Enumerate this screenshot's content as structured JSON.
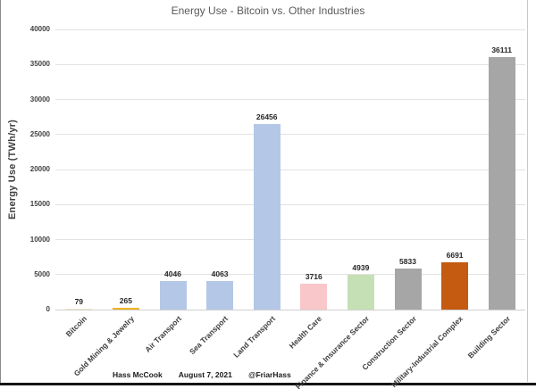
{
  "title": "Energy Use - Bitcoin vs. Other Industries",
  "footer": {
    "author": "Hass McCook",
    "date": "August 7, 2021",
    "handle": "@FriarHass"
  },
  "chart_data": {
    "type": "bar",
    "title": "Energy Use - Bitcoin vs. Other Industries",
    "xlabel": "",
    "ylabel": "Energy Use (TWh/yr)",
    "ylim": [
      0,
      40000
    ],
    "ytick_step": 5000,
    "grid": true,
    "legend": false,
    "categories": [
      "Bitcoin",
      "Gold Mining & Jewelry",
      "Air Transport",
      "Sea Transport",
      "Land Transport",
      "Health Care",
      "Finance & Insurance Sector",
      "Construction Sector",
      "Military-Industrial Complex",
      "Building Sector"
    ],
    "values": [
      79,
      265,
      4046,
      4063,
      26456,
      3716,
      4939,
      5833,
      6691,
      36111
    ],
    "bar_colors": [
      "#F2E9C9",
      "#F0B323",
      "#B4C7E7",
      "#B4C7E7",
      "#B4C7E7",
      "#F9C6C9",
      "#C5E0B4",
      "#A6A6A6",
      "#C55A11",
      "#A6A6A6"
    ],
    "gridline_color": "#e2e2e2"
  }
}
